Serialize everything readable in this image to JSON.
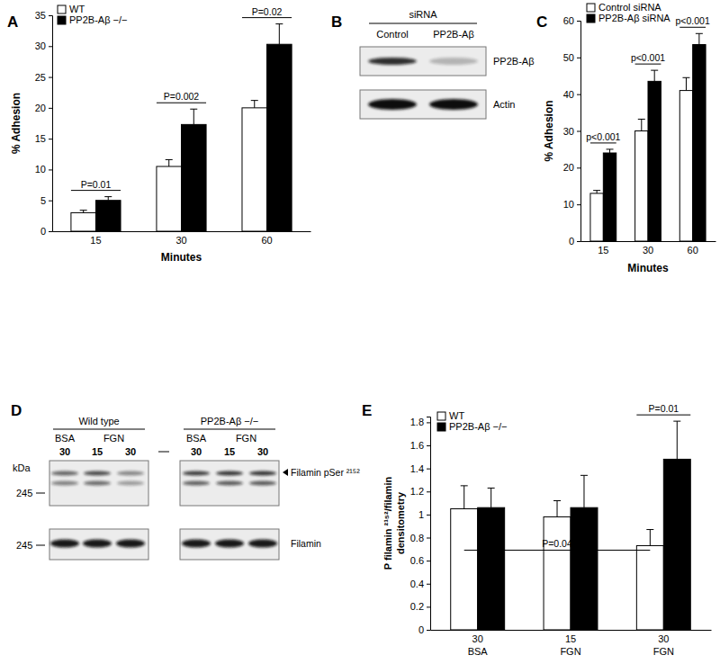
{
  "chart_data": [
    {
      "type": "bar",
      "title": "A",
      "x_label": "Minutes",
      "y_label": "% Adhesion",
      "categories": [
        "15",
        "30",
        "60"
      ],
      "series": [
        {
          "name": "WT",
          "color": "#ffffff",
          "values": [
            3,
            10.5,
            20
          ],
          "errors": [
            0.4,
            1.1,
            1.2
          ]
        },
        {
          "name": "PP2B-Aβ −/−",
          "color": "#000000",
          "values": [
            5,
            17.3,
            30.3
          ],
          "errors": [
            0.6,
            2.5,
            3.3
          ]
        }
      ],
      "ylim": [
        0,
        35
      ],
      "yticks": [
        0,
        5,
        10,
        15,
        20,
        25,
        30,
        35
      ],
      "legend": "top-left",
      "annotations": [
        {
          "text": "P=0.01",
          "category": 0
        },
        {
          "text": "P=0.002",
          "category": 1
        },
        {
          "text": "P=0.02",
          "category": 2
        }
      ]
    },
    {
      "type": "bar",
      "title": "C",
      "x_label": "Minutes",
      "y_label": "% Adhesion",
      "categories": [
        "15",
        "30",
        "60"
      ],
      "series": [
        {
          "name": "Control siRNA",
          "color": "#ffffff",
          "values": [
            13,
            30,
            41
          ],
          "errors": [
            0.8,
            3.2,
            3.5
          ]
        },
        {
          "name": "PP2B-Aβ siRNA",
          "color": "#000000",
          "values": [
            24,
            43.5,
            53.5
          ],
          "errors": [
            1,
            3,
            3
          ]
        }
      ],
      "ylim": [
        0,
        60
      ],
      "yticks": [
        0,
        10,
        20,
        30,
        40,
        50,
        60
      ],
      "legend": "top-left",
      "annotations": [
        {
          "text": "p<0.001",
          "category": 0
        },
        {
          "text": "p<0.001",
          "category": 1
        },
        {
          "text": "p<0.001",
          "category": 2
        }
      ]
    },
    {
      "type": "bar",
      "title": "E",
      "y_label": [
        "P filamin ²¹⁵²/filamin",
        "densitometry"
      ],
      "categories": [
        "30\nBSA",
        "15\nFGN",
        "30\nFGN"
      ],
      "series": [
        {
          "name": "WT",
          "color": "#ffffff",
          "values": [
            1.05,
            0.98,
            0.73
          ],
          "errors": [
            0.2,
            0.14,
            0.14
          ]
        },
        {
          "name": "PP2B-Aβ −/−",
          "color": "#000000",
          "values": [
            1.06,
            1.06,
            1.48
          ],
          "errors": [
            0.17,
            0.28,
            0.33
          ]
        }
      ],
      "ylim": [
        0,
        1.85
      ],
      "yticks": [
        0,
        0.2,
        0.4,
        0.6,
        0.8,
        1,
        1.2,
        1.4,
        1.6,
        1.8
      ],
      "legend": "top-left",
      "annotations": [
        {
          "text": "P=0.01",
          "category": 2
        },
        {
          "text": "P=0.04",
          "from": {
            "category": 0,
            "series": 0
          },
          "to": {
            "category": 2,
            "series": 0
          }
        }
      ]
    }
  ],
  "blots": [
    {
      "title": "B",
      "header": "siRNA",
      "lanes": [
        "Control",
        "PP2B-Aβ"
      ],
      "rows": [
        "PP2B-Aβ",
        "Actin"
      ]
    },
    {
      "title": "D",
      "unit": "kDa",
      "groups": [
        {
          "name": "Wild type",
          "treatments": [
            {
              "name": "BSA",
              "times": [
                "30"
              ]
            },
            {
              "name": "FGN",
              "times": [
                "15",
                "30"
              ]
            }
          ]
        },
        {
          "name": "PP2B-Aβ −/−",
          "treatments": [
            {
              "name": "BSA",
              "times": [
                "30"
              ]
            },
            {
              "name": "FGN",
              "times": [
                "15",
                "30"
              ]
            }
          ]
        }
      ],
      "rows": [
        {
          "label": "Filamin pSer ²¹⁵²",
          "size_marker": 245
        },
        {
          "label": "Filamin",
          "size_marker": 245
        }
      ]
    }
  ]
}
